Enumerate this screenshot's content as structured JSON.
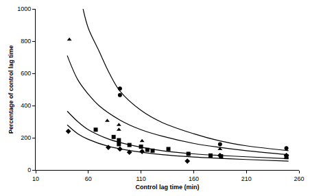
{
  "chart_data": {
    "type": "scatter",
    "x_label": "Control lag time (min)",
    "y_label": "Percentage of control lag time",
    "xlim": [
      10,
      260
    ],
    "xticks": [
      10,
      60,
      110,
      160,
      210,
      260
    ],
    "ylim": [
      0,
      1000
    ],
    "yticks": [
      0,
      200,
      400,
      600,
      800,
      1000
    ],
    "grid": false,
    "series": [
      {
        "type": "scatter",
        "marker": "diamond",
        "color": "#000000",
        "x": [
          41,
          79,
          90,
          99,
          111,
          154,
          185,
          248
        ],
        "values": [
          240,
          140,
          130,
          110,
          115,
          55,
          90,
          90
        ]
      },
      {
        "type": "scatter",
        "marker": "square",
        "color": "#000000",
        "x": [
          67,
          84,
          89,
          89,
          99,
          110,
          116,
          121,
          136,
          155,
          176,
          186,
          248
        ],
        "values": [
          250,
          205,
          185,
          160,
          155,
          145,
          125,
          120,
          130,
          100,
          90,
          85,
          80
        ]
      },
      {
        "type": "scatter",
        "marker": "triangle",
        "color": "#000000",
        "x": [
          42,
          78,
          89,
          89,
          111,
          155,
          185,
          248
        ],
        "values": [
          810,
          305,
          280,
          250,
          180,
          100,
          130,
          80
        ]
      },
      {
        "type": "scatter",
        "marker": "circle",
        "color": "#000000",
        "x": [
          90,
          90,
          185,
          248
        ],
        "values": [
          505,
          465,
          160,
          135
        ]
      },
      {
        "type": "line",
        "line_style": "solid",
        "color": "#000000",
        "x": [
          55,
          60,
          70,
          80,
          90,
          110,
          130,
          160,
          185,
          210,
          250
        ],
        "values": [
          1000,
          880,
          740,
          600,
          490,
          370,
          295,
          225,
          180,
          150,
          120
        ]
      },
      {
        "type": "line",
        "line_style": "solid",
        "color": "#000000",
        "x": [
          40,
          50,
          60,
          70,
          90,
          110,
          130,
          160,
          185,
          210,
          250
        ],
        "values": [
          710,
          560,
          470,
          400,
          310,
          250,
          210,
          165,
          140,
          120,
          95
        ]
      },
      {
        "type": "line",
        "line_style": "solid",
        "color": "#000000",
        "x": [
          40,
          50,
          60,
          80,
          100,
          130,
          160,
          185,
          210,
          250
        ],
        "values": [
          365,
          300,
          250,
          190,
          155,
          120,
          100,
          90,
          82,
          70
        ]
      },
      {
        "type": "line",
        "line_style": "solid",
        "color": "#000000",
        "x": [
          40,
          50,
          60,
          80,
          100,
          130,
          160,
          185,
          210,
          250
        ],
        "values": [
          280,
          225,
          190,
          145,
          120,
          95,
          80,
          72,
          65,
          55
        ]
      }
    ]
  }
}
